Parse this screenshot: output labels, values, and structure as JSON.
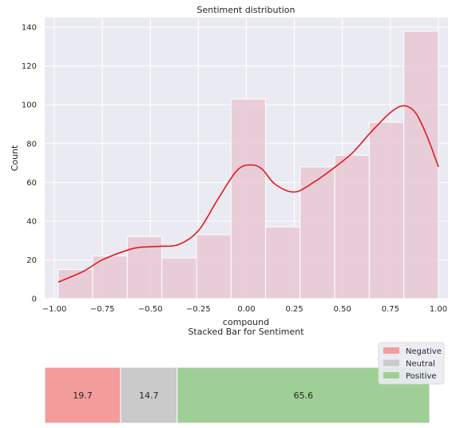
{
  "chart_data": [
    {
      "type": "bar",
      "title": "Sentiment distribution",
      "xlabel": "compound",
      "ylabel": "Count",
      "xlim": [
        -1.05,
        1.05
      ],
      "ylim": [
        0,
        145
      ],
      "x_ticks": [
        -1.0,
        -0.75,
        -0.5,
        -0.25,
        0.0,
        0.25,
        0.5,
        0.75,
        1.0
      ],
      "x_tick_labels": [
        "−1.00",
        "−0.75",
        "−0.50",
        "−0.25",
        "0.00",
        "0.25",
        "0.50",
        "0.75",
        "1.00"
      ],
      "y_ticks": [
        0,
        20,
        40,
        60,
        80,
        100,
        120,
        140
      ],
      "y_tick_labels": [
        "0",
        "20",
        "40",
        "60",
        "80",
        "100",
        "120",
        "140"
      ],
      "grid": true,
      "bins": [
        {
          "x0": -0.98,
          "x1": -0.8,
          "count": 15
        },
        {
          "x0": -0.8,
          "x1": -0.62,
          "count": 22
        },
        {
          "x0": -0.62,
          "x1": -0.44,
          "count": 32
        },
        {
          "x0": -0.44,
          "x1": -0.26,
          "count": 21
        },
        {
          "x0": -0.26,
          "x1": -0.08,
          "count": 33
        },
        {
          "x0": -0.08,
          "x1": 0.1,
          "count": 103
        },
        {
          "x0": 0.1,
          "x1": 0.28,
          "count": 37
        },
        {
          "x0": 0.28,
          "x1": 0.46,
          "count": 68
        },
        {
          "x0": 0.46,
          "x1": 0.64,
          "count": 74
        },
        {
          "x0": 0.64,
          "x1": 0.82,
          "count": 91
        },
        {
          "x0": 0.82,
          "x1": 1.0,
          "count": 138
        }
      ],
      "kde": {
        "x": [
          -0.98,
          -0.85,
          -0.75,
          -0.62,
          -0.55,
          -0.45,
          -0.35,
          -0.25,
          -0.15,
          -0.05,
          0.02,
          0.08,
          0.15,
          0.25,
          0.35,
          0.45,
          0.55,
          0.65,
          0.75,
          0.82,
          0.88,
          0.94,
          1.0
        ],
        "y": [
          8.5,
          14,
          20,
          25,
          26.5,
          27,
          28,
          35,
          51,
          66,
          69,
          67,
          59,
          55,
          60,
          67,
          75,
          86,
          96,
          99.5,
          96,
          84,
          68
        ]
      },
      "colors": {
        "bar_fill": "#e7c8d3",
        "bar_edge": "#ffffff",
        "kde": "#e31a1c",
        "plot_bg": "#eaeaf2",
        "grid": "#ffffff"
      }
    },
    {
      "type": "bar",
      "subtype": "stacked-horizontal",
      "title": "Stacked Bar for Sentiment",
      "series": [
        {
          "name": "Negative",
          "value": 19.7,
          "label": "19.7",
          "color": "#f39c9c"
        },
        {
          "name": "Neutral",
          "value": 14.7,
          "label": "14.7",
          "color": "#cacaca"
        },
        {
          "name": "Positive",
          "value": 65.6,
          "label": "65.6",
          "color": "#9fcf96"
        }
      ],
      "legend_position": "top-right"
    }
  ]
}
